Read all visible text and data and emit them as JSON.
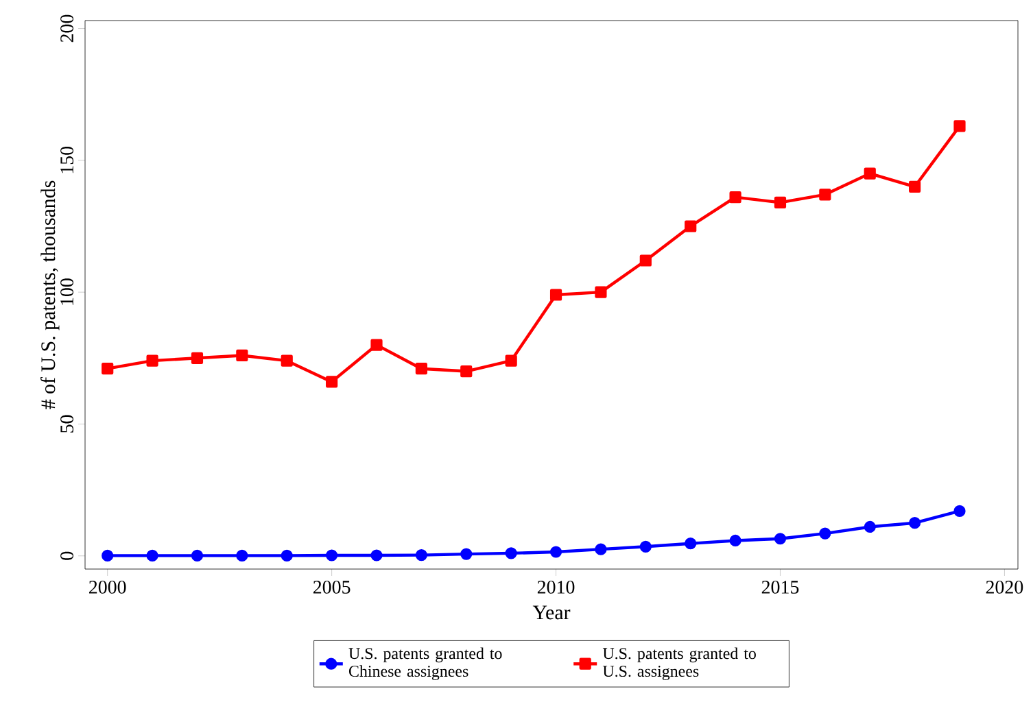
{
  "chart_data": {
    "type": "line",
    "xlabel": "Year",
    "ylabel": "# of U.S. patents, thousands",
    "x": [
      2000,
      2001,
      2002,
      2003,
      2004,
      2005,
      2006,
      2007,
      2008,
      2009,
      2010,
      2011,
      2012,
      2013,
      2014,
      2015,
      2016,
      2017,
      2018,
      2019
    ],
    "series": [
      {
        "name": "U.S. patents granted to Chinese assignees",
        "color": "#0000ff",
        "marker": "circle",
        "values": [
          0.1,
          0.1,
          0.1,
          0.1,
          0.1,
          0.2,
          0.2,
          0.3,
          0.7,
          1,
          1.5,
          2.5,
          3.5,
          4.7,
          5.8,
          6.5,
          8.5,
          11,
          12.5,
          17
        ]
      },
      {
        "name": "U.S. patents granted to U.S. assignees",
        "color": "#ff0000",
        "marker": "square",
        "values": [
          71,
          74,
          75,
          76,
          74,
          66,
          80,
          71,
          70,
          74,
          99,
          100,
          112,
          125,
          136,
          134,
          137,
          145,
          140,
          163
        ]
      }
    ],
    "xlim": [
      1999.5,
      2020.3
    ],
    "ylim": [
      -5,
      203
    ],
    "xticks": [
      2000,
      2005,
      2010,
      2015,
      2020
    ],
    "yticks": [
      0,
      50,
      100,
      150,
      200
    ],
    "grid": false,
    "legend": "bottom",
    "line_style": "solid"
  }
}
